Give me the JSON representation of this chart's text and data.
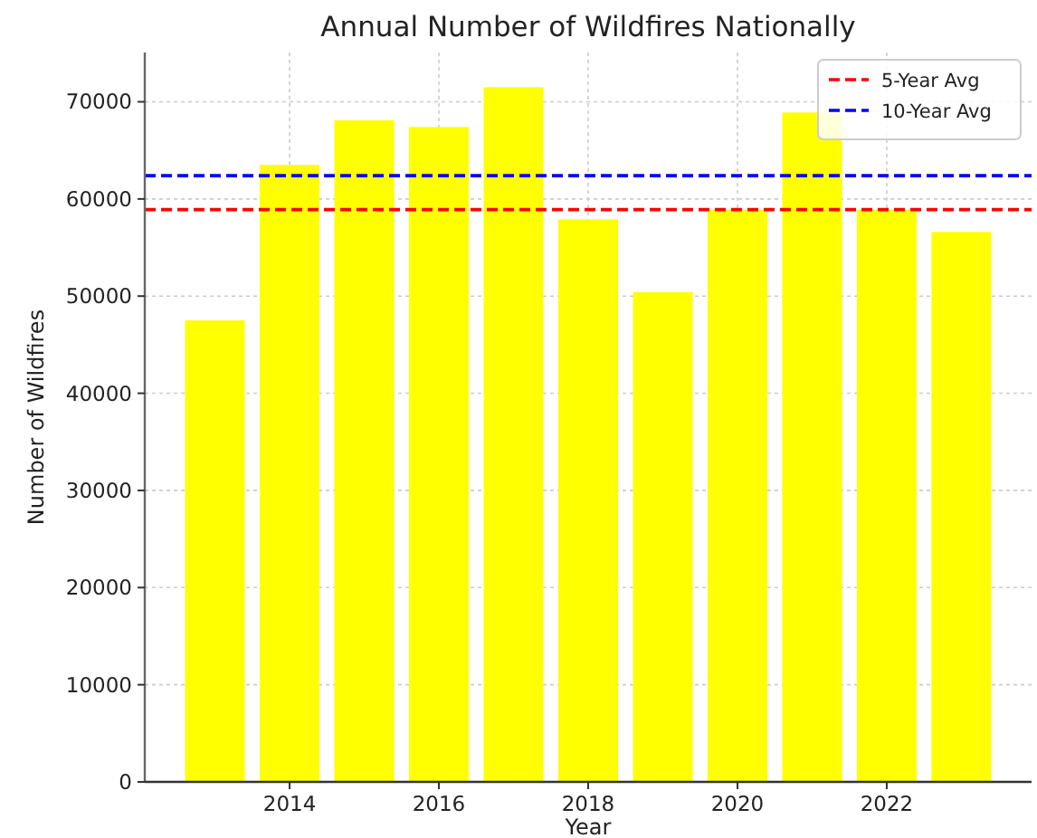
{
  "chart_data": {
    "type": "bar",
    "title": "Annual Number of Wildfires Nationally",
    "xlabel": "Year",
    "ylabel": "Number of Wildfires",
    "x": [
      2013,
      2014,
      2015,
      2016,
      2017,
      2018,
      2019,
      2020,
      2021,
      2022,
      2023
    ],
    "values": [
      47500,
      63500,
      68100,
      67400,
      71500,
      57900,
      50400,
      58900,
      68900,
      58900,
      56600
    ],
    "color": "#ffff00",
    "xlim": [
      2012.06,
      2023.94
    ],
    "xticks": [
      2014,
      2016,
      2018,
      2020,
      2022
    ],
    "ylim": [
      0,
      75075
    ],
    "yticks": [
      0,
      10000,
      20000,
      30000,
      40000,
      50000,
      60000,
      70000
    ],
    "ref_lines": [
      {
        "axis": "y",
        "value": 58900,
        "label": "5-Year Avg",
        "color": "#ff0000",
        "line_style": "dashed"
      },
      {
        "axis": "y",
        "value": 62400,
        "label": "10-Year Avg",
        "color": "#0000ff",
        "line_style": "dashed"
      }
    ],
    "grid": true,
    "legend": "top right"
  }
}
